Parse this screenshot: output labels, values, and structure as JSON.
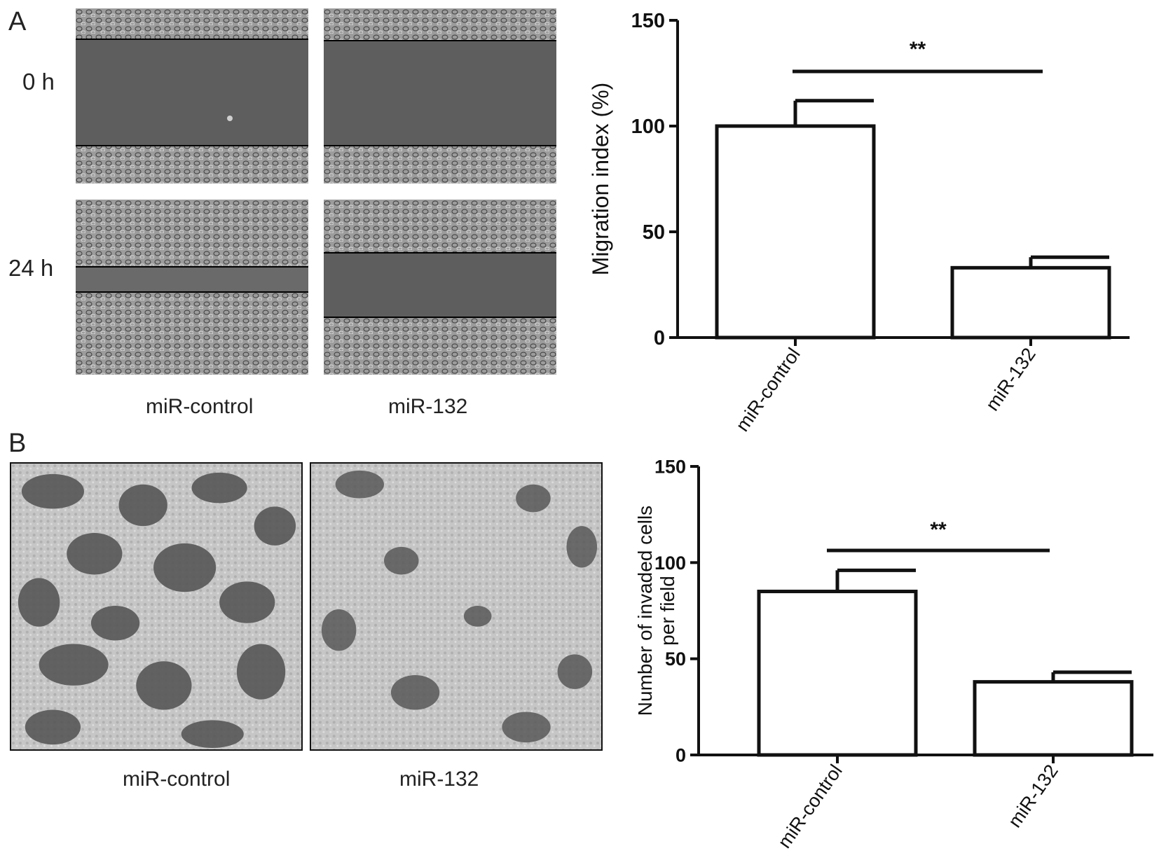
{
  "panel_a": {
    "letter": "A",
    "row_labels": [
      "0 h",
      "24 h"
    ],
    "column_captions": [
      "miR-control",
      "miR-132"
    ]
  },
  "panel_b": {
    "letter": "B",
    "image_captions": [
      "miR-control",
      "miR-132"
    ]
  },
  "colors": {
    "bar_fill": "#ffffff",
    "bar_stroke": "#111111",
    "wound_gap": "#5a5a5a",
    "cell_field": "#9a9a9a",
    "invasion_light": "#c8c8c8",
    "invasion_dark": "#555555"
  },
  "chart_data": [
    {
      "type": "bar",
      "title": "",
      "categories": [
        "miR-control",
        "miR-132"
      ],
      "values": [
        100,
        33
      ],
      "error_upper": [
        112,
        38
      ],
      "ylabel": "Migration index (%)",
      "xlabel": "",
      "ylim": [
        0,
        150
      ],
      "yticks": [
        "0",
        "50",
        "100",
        "150"
      ],
      "significance": "**",
      "grid": false
    },
    {
      "type": "bar",
      "title": "",
      "categories": [
        "miR-control",
        "miR-132"
      ],
      "values": [
        85,
        38
      ],
      "error_upper": [
        96,
        43
      ],
      "ylabel_lines": [
        "Number of invaded cells",
        "per field"
      ],
      "xlabel": "",
      "ylim": [
        0,
        150
      ],
      "yticks": [
        "0",
        "50",
        "100",
        "150"
      ],
      "significance": "**",
      "grid": false
    }
  ]
}
